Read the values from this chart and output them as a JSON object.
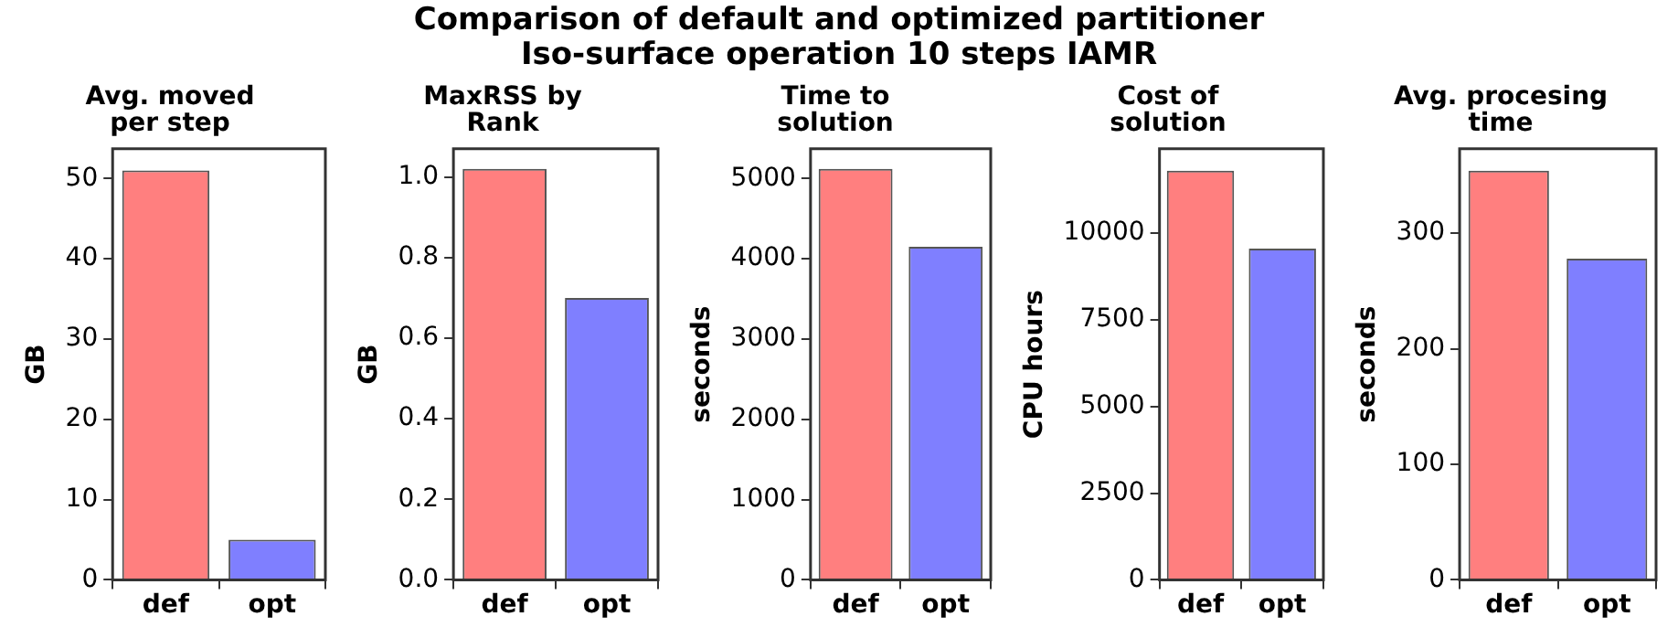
{
  "chart_data": [
    {
      "type": "bar",
      "title": "Avg. moved\nper step",
      "ylabel": "GB",
      "annotations": [
        "Comparison of default and optimized partitioner",
        "Iso-surface operation 10 steps IAMR"
      ],
      "categories": [
        "def",
        "opt"
      ],
      "values": [
        51,
        5
      ],
      "colors": [
        "#ff7f7f",
        "#7f7fff"
      ],
      "ylim": [
        0,
        53.7
      ],
      "yticks": [
        0,
        10,
        20,
        30,
        40,
        50
      ],
      "grid": false,
      "legend": false
    },
    {
      "type": "bar",
      "title": "MaxRSS by\nRank",
      "ylabel": "GB",
      "categories": [
        "def",
        "opt"
      ],
      "values": [
        1.02,
        0.7
      ],
      "colors": [
        "#ff7f7f",
        "#7f7fff"
      ],
      "ylim": [
        0,
        1.07
      ],
      "yticks": [
        {
          "value": 0,
          "label": "0.0"
        },
        0.2,
        0.4,
        0.6,
        0.8,
        {
          "value": 1,
          "label": "1.0"
        }
      ],
      "grid": false,
      "legend": false
    },
    {
      "type": "bar",
      "title": "Time to\nsolution",
      "ylabel": "seconds",
      "categories": [
        "def",
        "opt"
      ],
      "values": [
        5120,
        4150
      ],
      "colors": [
        "#ff7f7f",
        "#7f7fff"
      ],
      "ylim": [
        0,
        5370
      ],
      "yticks": [
        0,
        1000,
        2000,
        3000,
        4000,
        5000
      ],
      "grid": false,
      "legend": false
    },
    {
      "type": "bar",
      "title": "Cost of\nsolution",
      "ylabel": "CPU hours",
      "categories": [
        "def",
        "opt"
      ],
      "values": [
        11800,
        9550
      ],
      "colors": [
        "#ff7f7f",
        "#7f7fff"
      ],
      "ylim": [
        0,
        12430
      ],
      "yticks": [
        0,
        2500,
        5000,
        7500,
        10000
      ],
      "grid": false,
      "legend": false
    },
    {
      "type": "bar",
      "title": "Avg. procesing\ntime",
      "ylabel": "seconds",
      "categories": [
        "def",
        "opt"
      ],
      "values": [
        354,
        278
      ],
      "colors": [
        "#ff7f7f",
        "#7f7fff"
      ],
      "ylim": [
        0,
        373
      ],
      "yticks": [
        0,
        100,
        200,
        300
      ],
      "grid": false,
      "legend": false
    }
  ]
}
